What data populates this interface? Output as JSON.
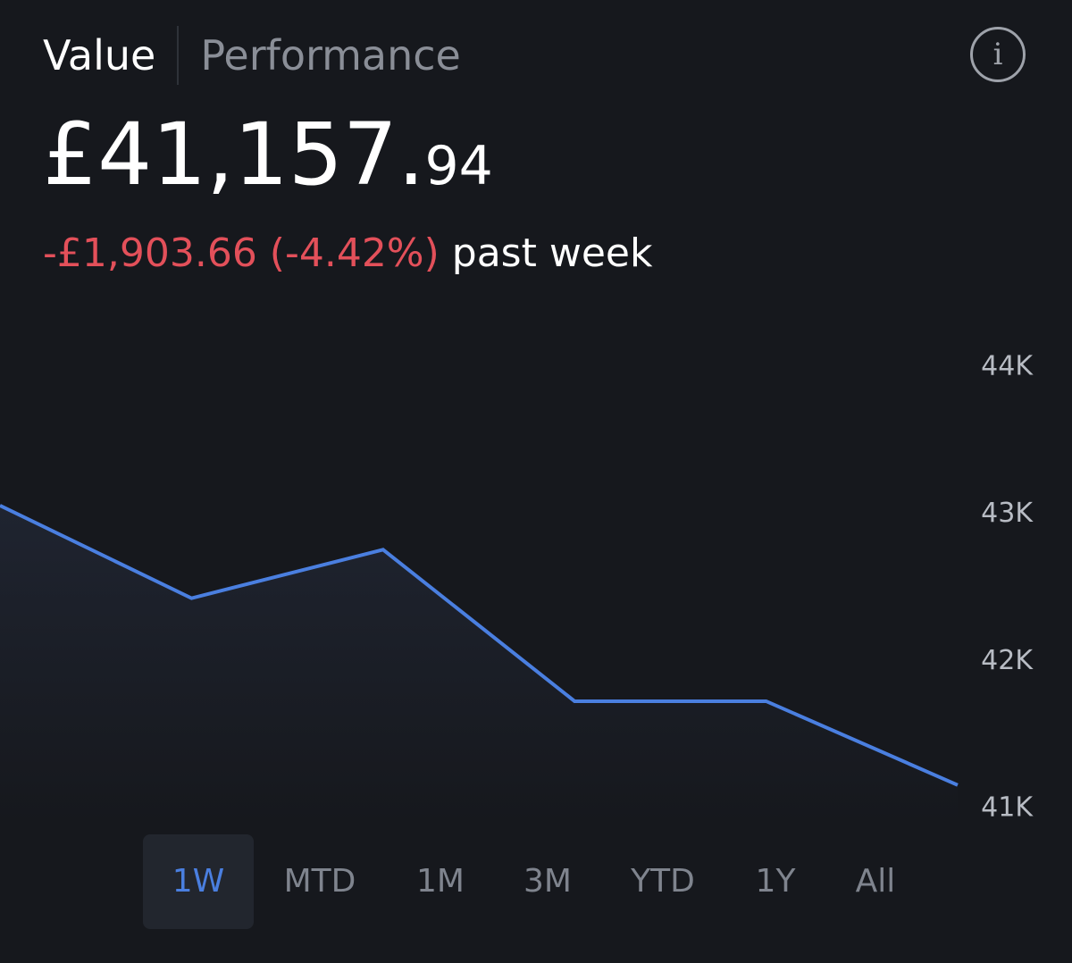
{
  "tabs": {
    "value_label": "Value",
    "performance_label": "Performance"
  },
  "info_icon": "info-icon",
  "portfolio": {
    "value_main": "£41,157.",
    "value_decimals": "94",
    "change_text": "-£1,903.66 (-4.42%)",
    "change_period": "past week"
  },
  "colors": {
    "background": "#16181d",
    "line": "#4a7fe0",
    "negative": "#e3505a",
    "active_range": "#4a7fe0"
  },
  "chart_data": {
    "type": "area",
    "x": [
      0,
      1,
      2,
      3,
      4,
      5
    ],
    "values": [
      43.05,
      42.42,
      42.75,
      41.72,
      41.72,
      41.15
    ],
    "ylim": [
      40.9,
      44.3
    ],
    "yticks": [
      "44K",
      "43K",
      "42K",
      "41K"
    ],
    "ytick_values": [
      44,
      43,
      42,
      41
    ],
    "grid": false,
    "line_color": "#4a7fe0"
  },
  "ranges": [
    "1W",
    "MTD",
    "1M",
    "3M",
    "YTD",
    "1Y",
    "All"
  ],
  "active_range": "1W"
}
